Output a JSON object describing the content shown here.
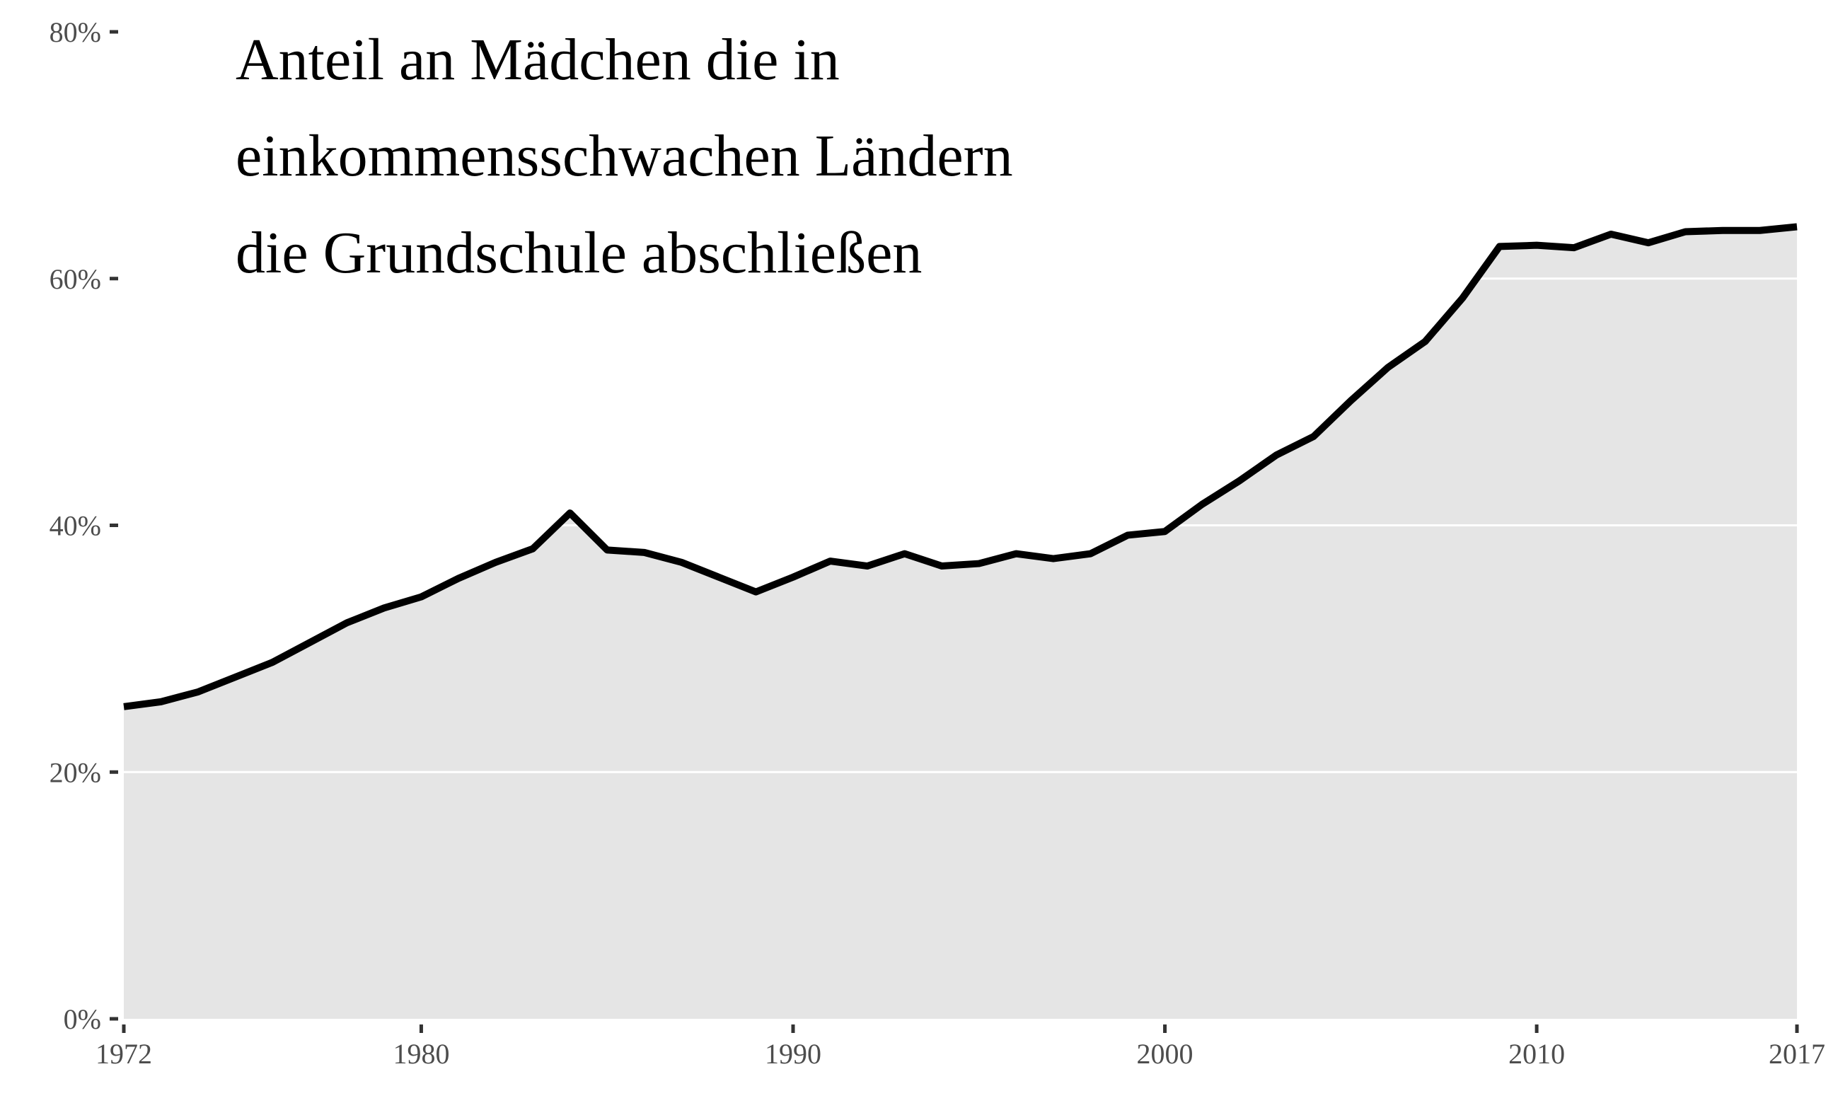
{
  "chart_data": {
    "type": "area",
    "title_lines": [
      "Anteil an Mädchen die in",
      "einkommensschwachen Ländern",
      "die Grundschule abschließen"
    ],
    "xlabel": "",
    "ylabel": "",
    "x": [
      1972,
      1973,
      1974,
      1975,
      1976,
      1977,
      1978,
      1979,
      1980,
      1981,
      1982,
      1983,
      1984,
      1985,
      1986,
      1987,
      1988,
      1989,
      1990,
      1991,
      1992,
      1993,
      1994,
      1995,
      1996,
      1997,
      1998,
      1999,
      2000,
      2001,
      2002,
      2003,
      2004,
      2005,
      2006,
      2007,
      2008,
      2009,
      2010,
      2011,
      2012,
      2013,
      2014,
      2015,
      2016,
      2017
    ],
    "series": [
      {
        "values": [
          25.3,
          25.7,
          26.5,
          27.7,
          28.9,
          30.5,
          32.1,
          33.3,
          34.2,
          35.7,
          37.0,
          38.1,
          41.0,
          38.0,
          37.8,
          37.0,
          35.8,
          34.6,
          35.8,
          37.1,
          36.7,
          37.7,
          36.7,
          36.9,
          37.7,
          37.3,
          37.7,
          39.2,
          39.5,
          41.7,
          43.6,
          45.7,
          47.2,
          50.1,
          52.8,
          54.9,
          58.4,
          62.6,
          62.7,
          62.5,
          63.6,
          62.9,
          63.8,
          63.9,
          63.9,
          64.2
        ]
      }
    ],
    "x_ticks": [
      1972,
      1980,
      1990,
      2000,
      2010,
      2017
    ],
    "y_ticks": [
      0,
      20,
      40,
      60,
      80
    ],
    "y_tick_labels": [
      "0%",
      "20%",
      "40%",
      "60%",
      "80%"
    ],
    "xlim": [
      1972,
      2017
    ],
    "ylim": [
      0,
      80
    ],
    "grid": "horizontal",
    "colors": {
      "fill": "#e5e5e5",
      "line": "#000000",
      "gridline": "#ffffff",
      "tick_text": "#4d4d4d",
      "title": "#000000"
    }
  }
}
